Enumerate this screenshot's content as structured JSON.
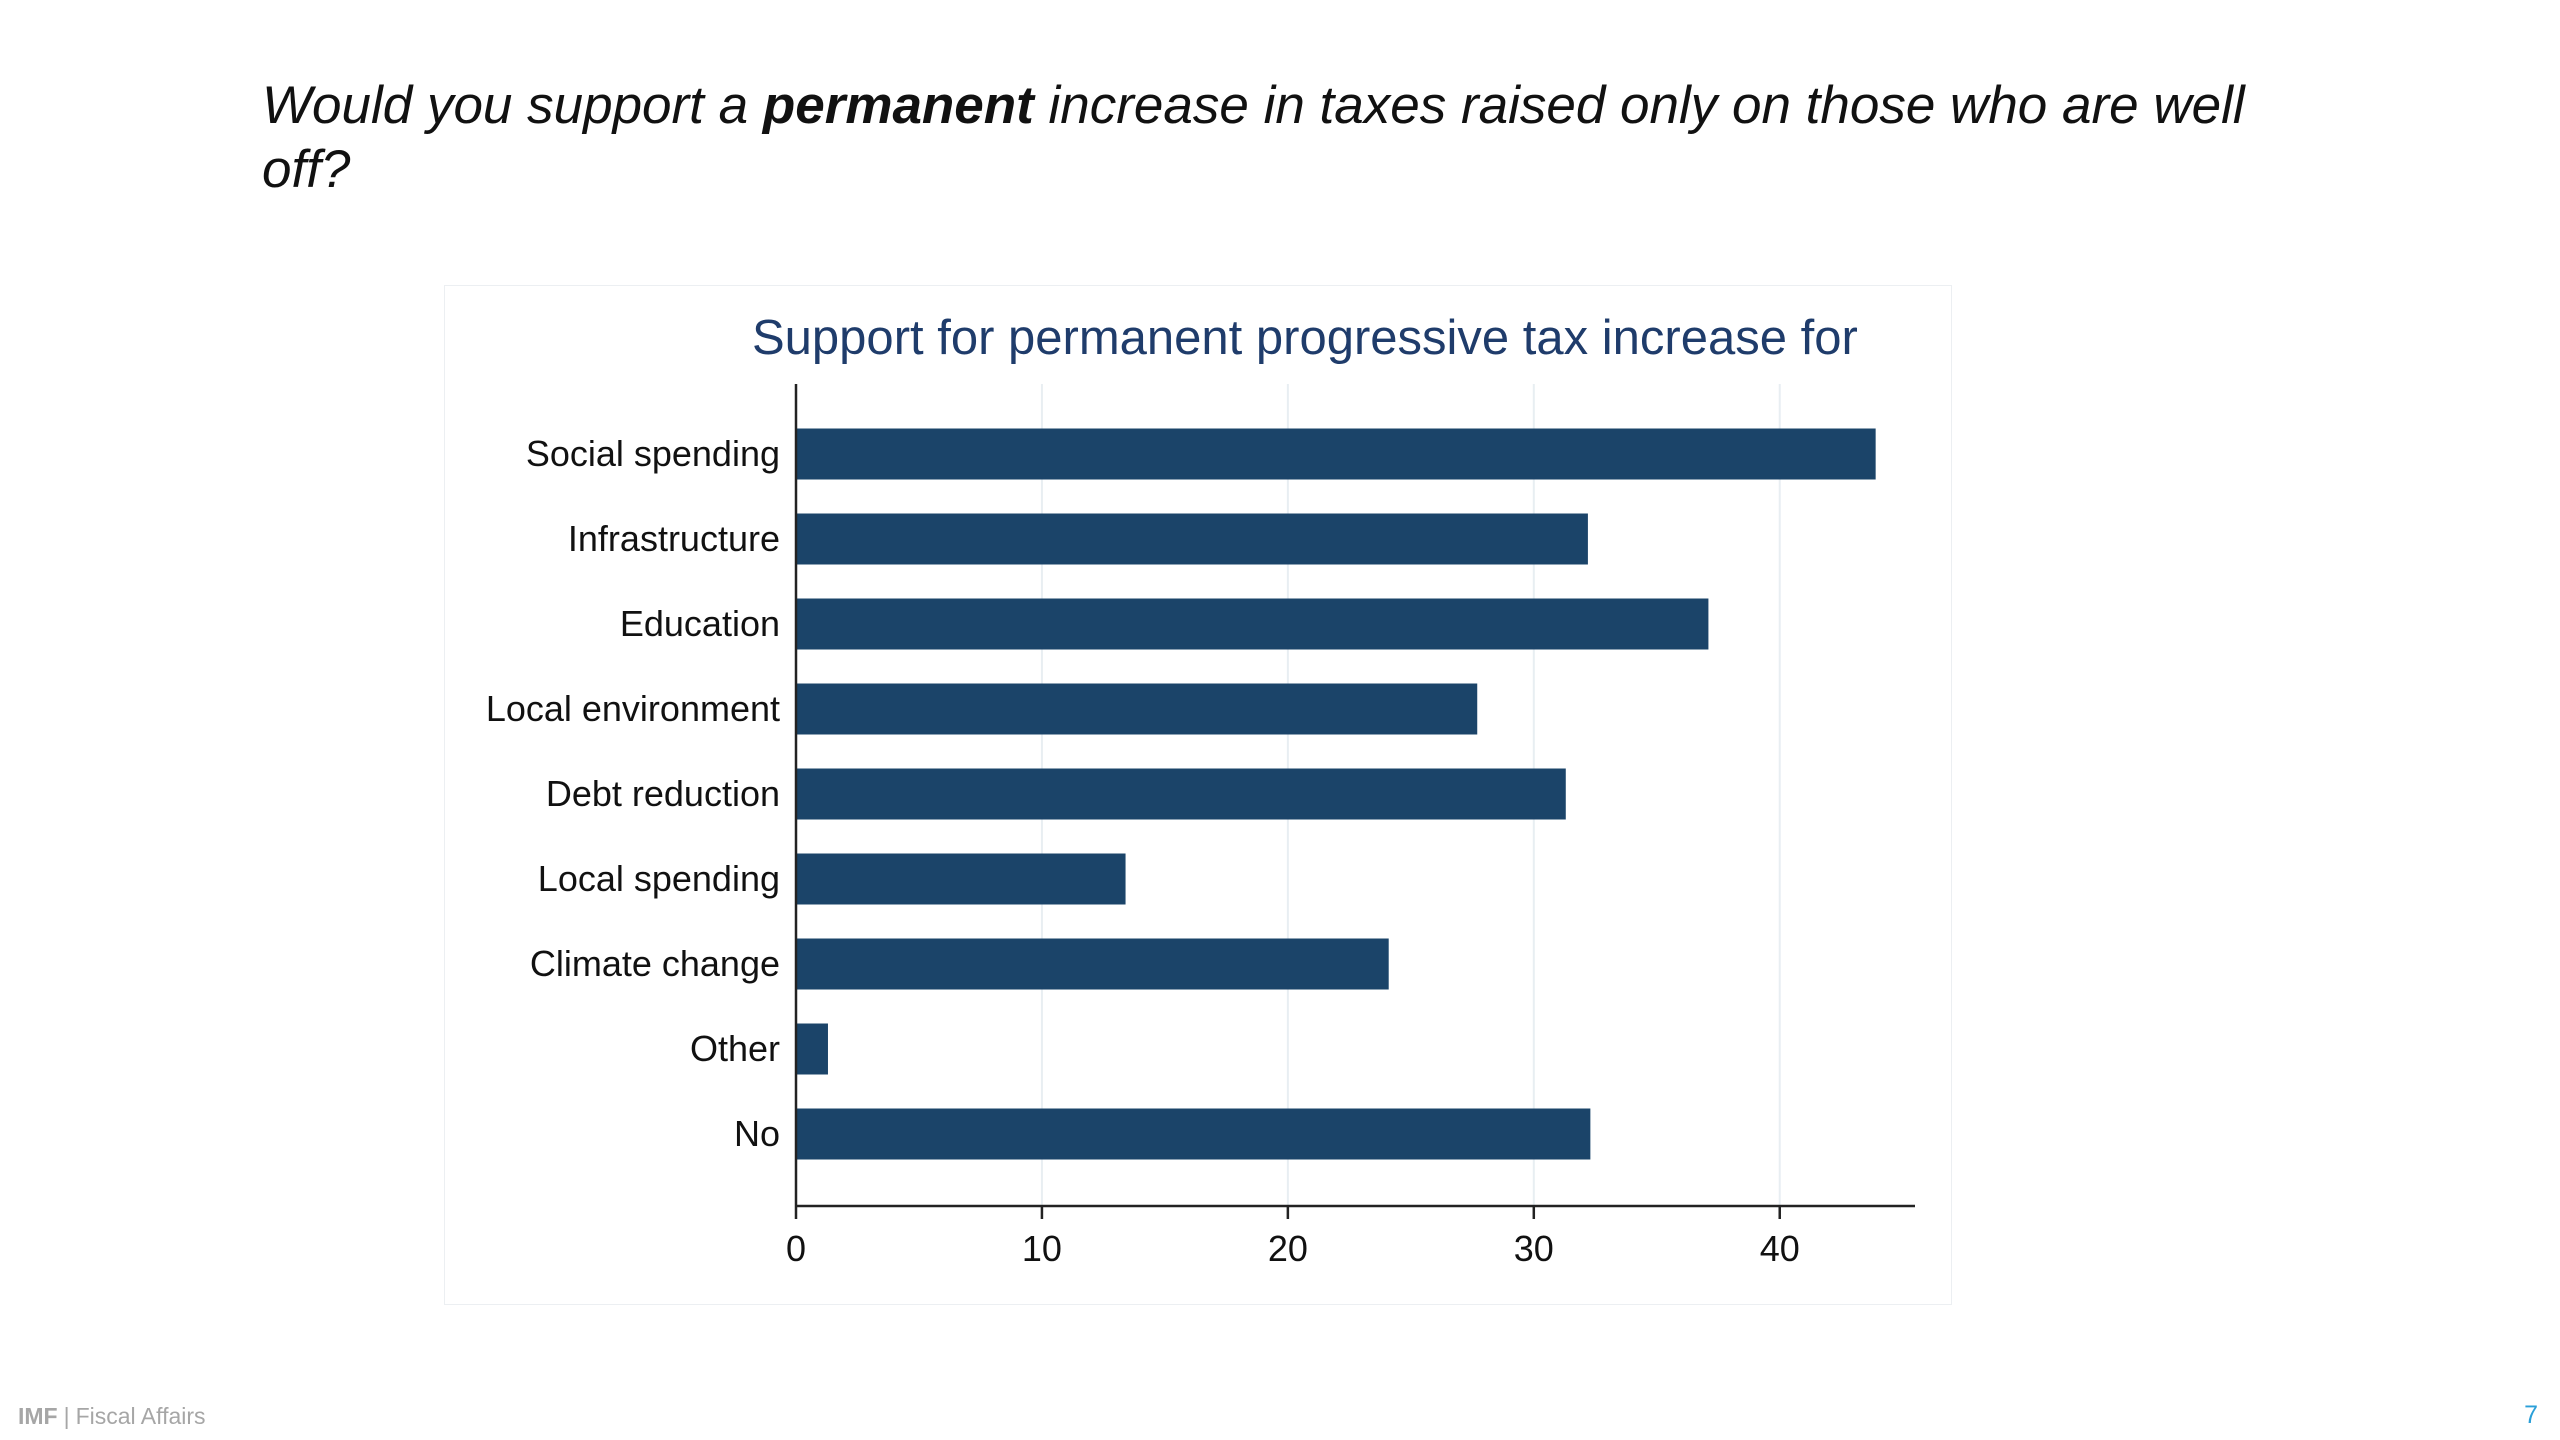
{
  "slide": {
    "heading_before": "Would you support a ",
    "heading_emphasis": "permanent",
    "heading_after": " increase in taxes raised only on those who are well off?"
  },
  "footer": {
    "brand": "IMF",
    "separator": "|",
    "department": "Fiscal Affairs",
    "page_number": "7"
  },
  "colors": {
    "bar": "#1b4469",
    "title": "#1f3c6b",
    "text": "#111111",
    "grid": "#e8eef2",
    "axis": "#222222"
  },
  "chart_data": {
    "type": "bar",
    "orientation": "horizontal",
    "title": "Support for permanent progressive tax increase for",
    "categories": [
      "Social spending",
      "Infrastructure",
      "Education",
      "Local environment",
      "Debt reduction",
      "Local spending",
      "Climate change",
      "Other",
      "No"
    ],
    "values": [
      43.9,
      32.2,
      37.1,
      27.7,
      31.3,
      13.4,
      24.1,
      1.3,
      32.3
    ],
    "xlabel": "",
    "ylabel": "",
    "xlim": [
      0,
      45.5
    ],
    "xticks": [
      0,
      10,
      20,
      30,
      40
    ],
    "grid": true,
    "legend": "none"
  }
}
